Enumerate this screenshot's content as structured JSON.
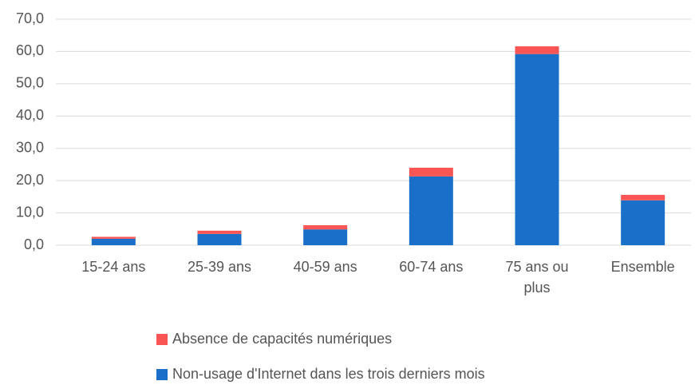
{
  "chart_data": {
    "type": "stacked_bar",
    "categories": [
      "15-24 ans",
      "25-39 ans",
      "40-59 ans",
      "60-74 ans",
      "75 ans ou plus",
      "Ensemble"
    ],
    "series": [
      {
        "name": "Non-usage d'Internet dans les trois derniers mois",
        "color": "#1a70c8",
        "values": [
          2.0,
          3.5,
          4.9,
          21.3,
          59.2,
          13.9
        ]
      },
      {
        "name": "Absence de capacités numériques",
        "color": "#fa5555",
        "values": [
          0.6,
          1.0,
          1.3,
          2.7,
          2.4,
          1.7
        ]
      }
    ],
    "ylim": [
      0,
      70
    ],
    "yticks": [
      {
        "value": 0,
        "label": "0,0"
      },
      {
        "value": 10,
        "label": "10,0"
      },
      {
        "value": 20,
        "label": "20,0"
      },
      {
        "value": 30,
        "label": "30,0"
      },
      {
        "value": 40,
        "label": "40,0"
      },
      {
        "value": 50,
        "label": "50,0"
      },
      {
        "value": 60,
        "label": "60,0"
      },
      {
        "value": 70,
        "label": "70,0"
      }
    ],
    "grid": true,
    "legend": "bottom"
  }
}
